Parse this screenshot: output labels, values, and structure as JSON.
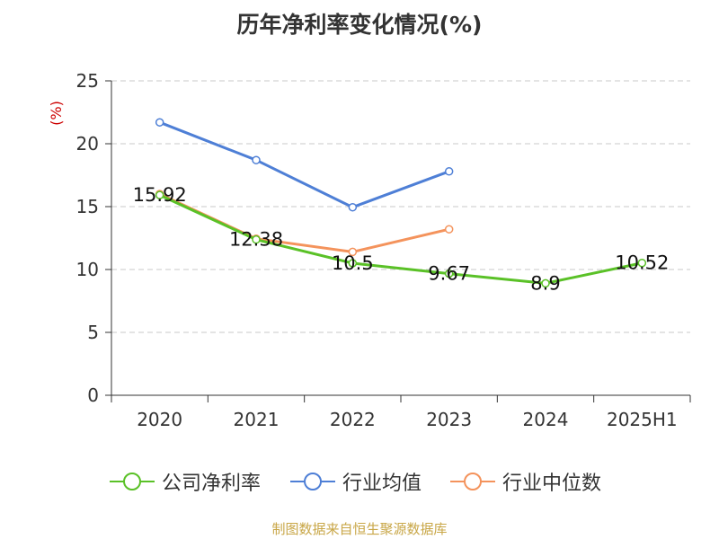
{
  "chart_data": {
    "type": "line",
    "title": "历年净利率变化情况(%)",
    "ylabel": "(%)",
    "categories": [
      "2020",
      "2021",
      "2022",
      "2023",
      "2024",
      "2025H1"
    ],
    "ylim": [
      0,
      25
    ],
    "yticks": [
      0,
      5,
      10,
      15,
      20,
      25
    ],
    "grid": true,
    "legend_position": "bottom",
    "series": [
      {
        "name": "公司净利率",
        "color": "#5ac127",
        "values": [
          15.92,
          12.38,
          10.5,
          9.67,
          8.9,
          10.52
        ],
        "labels": [
          "15.92",
          "12.38",
          "10.5",
          "9.67",
          "8.9",
          "10.52"
        ]
      },
      {
        "name": "行业均值",
        "color": "#4e7fd6",
        "values": [
          21.7,
          18.7,
          14.95,
          17.8,
          null,
          null
        ]
      },
      {
        "name": "行业中位数",
        "color": "#f4935c",
        "values": [
          16.0,
          12.45,
          11.4,
          13.2,
          null,
          null
        ]
      }
    ]
  },
  "source": "制图数据来自恒生聚源数据库"
}
